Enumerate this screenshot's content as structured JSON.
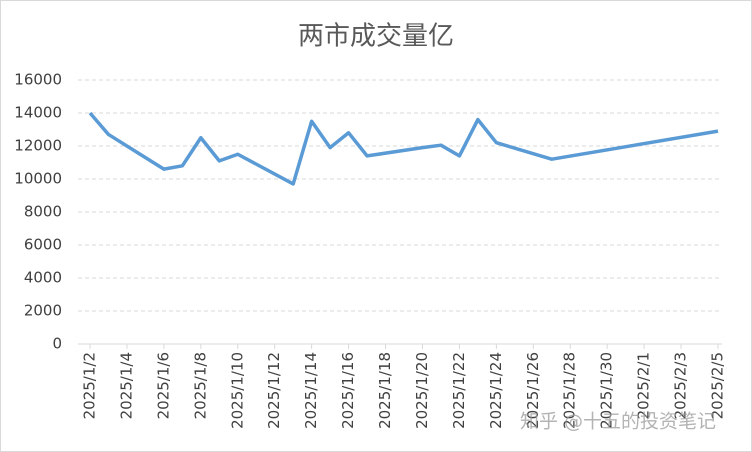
{
  "chart_data": {
    "type": "line",
    "title": "两市成交量亿",
    "x": [
      "2025/1/2",
      "2025/1/3",
      "2025/1/6",
      "2025/1/7",
      "2025/1/8",
      "2025/1/9",
      "2025/1/10",
      "2025/1/13",
      "2025/1/14",
      "2025/1/15",
      "2025/1/16",
      "2025/1/17",
      "2025/1/20",
      "2025/1/21",
      "2025/1/22",
      "2025/1/23",
      "2025/1/24",
      "2025/1/27",
      "2025/2/5"
    ],
    "series": [
      {
        "name": "两市成交量亿",
        "color": "#5b9bd5",
        "values": [
          14000,
          12700,
          10600,
          10800,
          12500,
          11100,
          11500,
          9700,
          13500,
          11900,
          12800,
          11400,
          11900,
          12050,
          11400,
          13600,
          12200,
          11200,
          12900
        ]
      }
    ],
    "xlim": [
      "2025/1/2",
      "2025/2/5"
    ],
    "xticks": [
      "2025/1/2",
      "2025/1/4",
      "2025/1/6",
      "2025/1/8",
      "2025/1/10",
      "2025/1/12",
      "2025/1/14",
      "2025/1/16",
      "2025/1/18",
      "2025/1/20",
      "2025/1/22",
      "2025/1/24",
      "2025/1/26",
      "2025/1/28",
      "2025/1/30",
      "2025/2/1",
      "2025/2/3",
      "2025/2/5"
    ],
    "ylim": [
      0,
      16000
    ],
    "yticks": [
      0,
      2000,
      4000,
      6000,
      8000,
      10000,
      12000,
      14000,
      16000
    ],
    "grid": true,
    "watermark": "知乎 @十五的投资笔记"
  }
}
